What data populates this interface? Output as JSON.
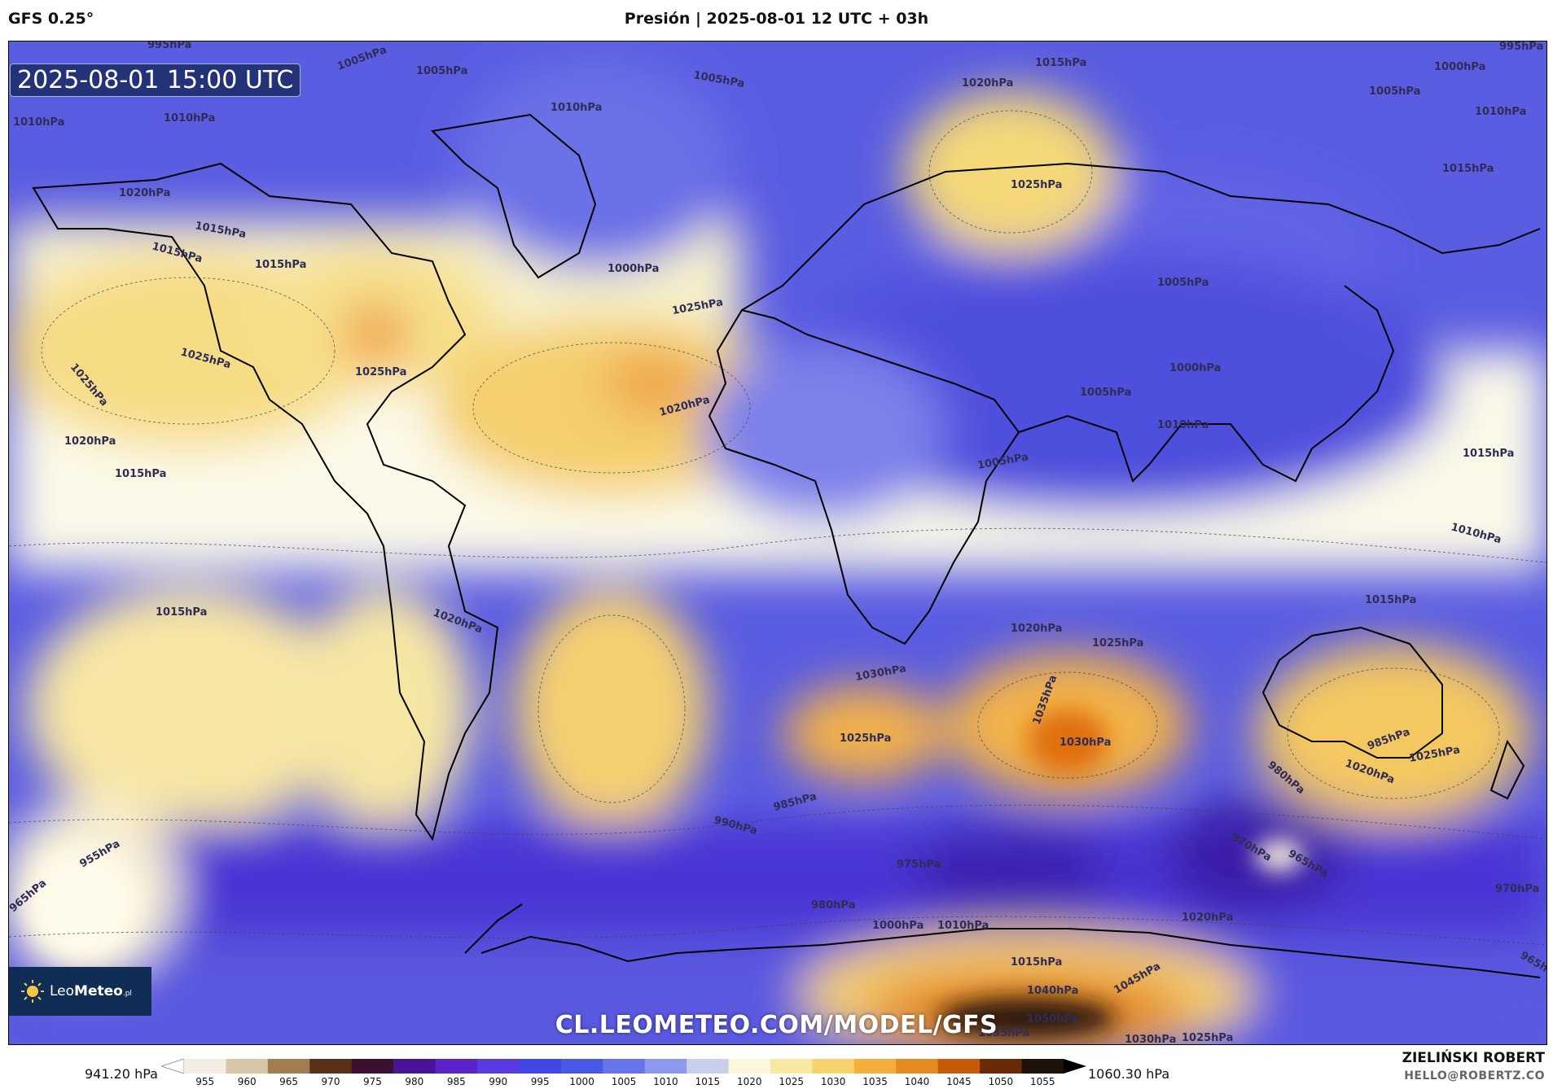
{
  "header": {
    "model": "GFS 0.25°",
    "title": "Presión | 2025-08-01 12 UTC + 03h"
  },
  "map": {
    "timestamp": "2025-08-01 15:00 UTC",
    "watermark": "CL.LEOMETEO.COM/MODEL/GFS",
    "logo": {
      "brand_light": "Leo",
      "brand_bold": "Meteo",
      "suffix": ".pl"
    },
    "isobar_labels": [
      "995hPa",
      "1005hPa",
      "1005hPa",
      "1005hPa",
      "1015hPa",
      "1020hPa",
      "1000hPa",
      "995hPa",
      "1010hPa",
      "1010hPa",
      "1005hPa",
      "1010hPa",
      "1010hPa",
      "1020hPa",
      "1015hPa",
      "1025hPa",
      "1015hPa",
      "1015hPa",
      "1005hPa",
      "1000hPa",
      "1015hPa",
      "1025hPa",
      "1025hPa",
      "1025hPa",
      "1025hPa",
      "1020hPa",
      "1020hPa",
      "1015hPa",
      "1000hPa",
      "1005hPa",
      "1005hPa",
      "1010hPa",
      "1015hPa",
      "1015hPa",
      "1010hPa",
      "1020hPa",
      "1025hPa",
      "1030hPa",
      "1035hPa",
      "1030hPa",
      "1025hPa",
      "1020hPa",
      "1025hPa",
      "1015hPa",
      "1020hPa",
      "985hPa",
      "980hPa",
      "970hPa",
      "965hPa",
      "990hPa",
      "985hPa",
      "975hPa",
      "970hPa",
      "965hPa",
      "980hPa",
      "955hPa",
      "965hPa",
      "1000hPa",
      "1010hPa",
      "1020hPa",
      "1015hPa",
      "1040hPa",
      "1045hPa",
      "1050hPa",
      "1030hPa",
      "1025hPa",
      "1035hPa"
    ],
    "colors": {
      "low_deep": "#3b1fa8",
      "low": "#4d4bdc",
      "mid": "#9aa5ef",
      "neutral": "#fbf9e8",
      "high": "#f6d87a",
      "high_strong": "#f0a04a",
      "extreme": "#2a1b10"
    }
  },
  "colorbar": {
    "min_label": "941.20 hPa",
    "max_label": "1060.30 hPa",
    "ticks": [
      "955",
      "960",
      "965",
      "970",
      "975",
      "980",
      "985",
      "990",
      "995",
      "1000",
      "1005",
      "1010",
      "1015",
      "1020",
      "1025",
      "1030",
      "1035",
      "1040",
      "1045",
      "1050",
      "1055"
    ],
    "colors": [
      "#f2eee2",
      "#d7c7a8",
      "#a07e52",
      "#5a3018",
      "#3a1230",
      "#4a149a",
      "#5b22c8",
      "#5a3be0",
      "#4246e6",
      "#4858e8",
      "#6774ea",
      "#8e98ee",
      "#c9ceec",
      "#fbf7dc",
      "#f8e8a2",
      "#f6d36c",
      "#f4ae3c",
      "#e58a1c",
      "#c45a0a",
      "#6a2a08",
      "#1e120a"
    ]
  },
  "footer": {
    "author": "ZIELIŃSKI ROBERT",
    "email": "HELLO@ROBERTZ.CO"
  }
}
